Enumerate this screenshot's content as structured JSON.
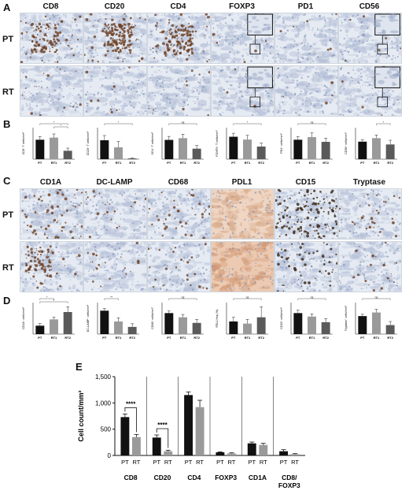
{
  "panels": {
    "A": {
      "letter": "A",
      "columns": [
        "CD8",
        "CD20",
        "CD4",
        "FOXP3",
        "PD1",
        "CD56"
      ],
      "rows": [
        "PT",
        "RT"
      ],
      "stain_colors": {
        "background": "#e4e9f1",
        "hematoxylin": "#9aa7c3",
        "dab": "#7a4a2c"
      }
    },
    "B": {
      "letter": "B",
      "charts": [
        {
          "ylabel": "CD8⁺ T cells/mm²",
          "categories": [
            "PT",
            "RT1",
            "RT2"
          ],
          "values": [
            370,
            410,
            160
          ],
          "errors": [
            60,
            70,
            50
          ],
          "ylim": [
            0,
            600
          ],
          "sig": [
            [
              "*",
              0,
              2
            ],
            [
              "*",
              1,
              2
            ]
          ]
        },
        {
          "ylabel": "CD20⁺ T cells/mm²",
          "categories": [
            "PT",
            "RT1",
            "RT2"
          ],
          "values": [
            480,
            300,
            20
          ],
          "errors": [
            120,
            150,
            10
          ],
          "ylim": [
            0,
            800
          ],
          "sig": [
            [
              "*",
              0,
              2
            ]
          ]
        },
        {
          "ylabel": "CD4⁺ T cells/mm²",
          "categories": [
            "PT",
            "RT1",
            "RT2"
          ],
          "values": [
            1100,
            1200,
            600
          ],
          "errors": [
            200,
            220,
            180
          ],
          "ylim": [
            0,
            1800
          ],
          "sig": [
            [
              "ns",
              0,
              2
            ]
          ]
        },
        {
          "ylabel": "FOXP3⁺ T cells/mm²",
          "categories": [
            "PT",
            "RT1",
            "RT2"
          ],
          "values": [
            32,
            28,
            18
          ],
          "errors": [
            5,
            6,
            5
          ],
          "ylim": [
            0,
            45
          ],
          "sig": [
            [
              "*",
              0,
              2
            ]
          ]
        },
        {
          "ylabel": "PD1⁺ cells/mm²",
          "categories": [
            "PT",
            "RT1",
            "RT2"
          ],
          "values": [
            37,
            42,
            33
          ],
          "errors": [
            6,
            8,
            7
          ],
          "ylim": [
            0,
            60
          ],
          "sig": [
            [
              "ns",
              0,
              2
            ]
          ]
        },
        {
          "ylabel": "CD56⁺ cells/mm²",
          "categories": [
            "PT",
            "RT1",
            "RT2"
          ],
          "values": [
            50,
            60,
            42
          ],
          "errors": [
            6,
            9,
            12
          ],
          "ylim": [
            0,
            90
          ],
          "sig": [
            [
              "*",
              1,
              2
            ]
          ]
        }
      ]
    },
    "C": {
      "letter": "C",
      "columns": [
        "CD1A",
        "DC-LAMP",
        "CD68",
        "PDL1",
        "CD15",
        "Tryptase"
      ],
      "rows": [
        "PT",
        "RT"
      ]
    },
    "D": {
      "letter": "D",
      "charts": [
        {
          "ylabel": "CD1A⁺ cells/mm²",
          "categories": [
            "PT",
            "RT1",
            "RT2"
          ],
          "values": [
            80,
            140,
            210
          ],
          "errors": [
            20,
            20,
            50
          ],
          "ylim": [
            0,
            300
          ],
          "sig": [
            [
              "*",
              0,
              1
            ],
            [
              "*",
              0,
              2
            ]
          ]
        },
        {
          "ylabel": "DC-LAMP⁺ cells/mm²",
          "categories": [
            "PT",
            "RT1",
            "RT2"
          ],
          "values": [
            5.2,
            2.8,
            1.6
          ],
          "errors": [
            0.5,
            0.8,
            0.7
          ],
          "ylim": [
            0,
            7
          ],
          "sig": [
            [
              "**",
              0,
              1
            ]
          ]
        },
        {
          "ylabel": "CD68⁺ cells/mm²",
          "categories": [
            "PT",
            "RT1",
            "RT2"
          ],
          "values": [
            300,
            240,
            160
          ],
          "errors": [
            30,
            40,
            50
          ],
          "ylim": [
            0,
            450
          ],
          "sig": [
            [
              "ns",
              0,
              2
            ]
          ]
        },
        {
          "ylabel": "PDL1 Hsp (%)",
          "categories": [
            "PT",
            "RT1",
            "RT2"
          ],
          "values": [
            12,
            10,
            16
          ],
          "errors": [
            4,
            4,
            10
          ],
          "ylim": [
            0,
            30
          ],
          "sig": [
            [
              "ns",
              0,
              2
            ]
          ]
        },
        {
          "ylabel": "CD15⁺ cells/mm²",
          "categories": [
            "PT",
            "RT1",
            "RT2"
          ],
          "values": [
            300,
            250,
            170
          ],
          "errors": [
            40,
            40,
            50
          ],
          "ylim": [
            0,
            450
          ],
          "sig": [
            [
              "ns",
              0,
              2
            ]
          ]
        },
        {
          "ylabel": "Tryptase⁺ cells/mm²",
          "categories": [
            "PT",
            "RT1",
            "RT2"
          ],
          "values": [
            40,
            48,
            20
          ],
          "errors": [
            4,
            7,
            8
          ],
          "ylim": [
            0,
            70
          ],
          "sig": [
            [
              "ns",
              0,
              2
            ]
          ]
        }
      ]
    },
    "E": {
      "letter": "E"
    }
  },
  "chart_data": {
    "type": "bar",
    "groups": [
      "CD8",
      "CD20",
      "CD4",
      "FOXP3",
      "CD1A",
      "CD8/\nFOXP3"
    ],
    "bar_labels": [
      "PT",
      "RT"
    ],
    "series": [
      {
        "values": [
          730,
          340,
          1150,
          60,
          230,
          80
        ],
        "errors": [
          60,
          50,
          60,
          8,
          25,
          30
        ],
        "color": "#111111"
      },
      {
        "values": [
          350,
          80,
          920,
          40,
          200,
          25
        ],
        "errors": [
          50,
          20,
          130,
          10,
          30,
          10
        ],
        "color": "#9a9a9a"
      }
    ],
    "ylabel": "Cell count/mm²",
    "ylim": [
      0,
      1500
    ],
    "yticks": [
      "0",
      "500",
      "1,000",
      "1,500"
    ],
    "significance": [
      {
        "group": 0,
        "label": "****"
      },
      {
        "group": 1,
        "label": "****"
      }
    ]
  }
}
